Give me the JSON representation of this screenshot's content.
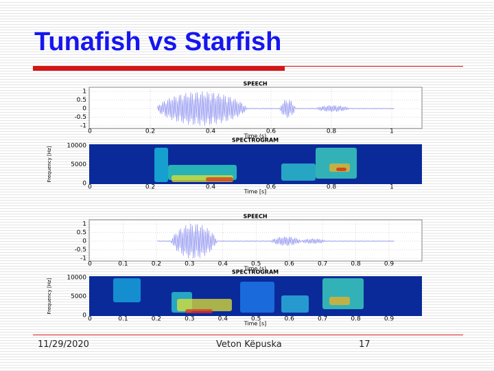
{
  "title": "Tunafish vs Starfish",
  "panels": [
    {
      "speech": {
        "title": "SPEECH",
        "xlabel": "Time (s)",
        "xticks": [
          "0",
          "0.2",
          "0.4",
          "0.6",
          "0.8",
          "1"
        ],
        "yticks": [
          "1",
          "0.5",
          "0",
          "-0.5",
          "-1"
        ]
      },
      "spectrogram": {
        "title": "SPECTROGRAM",
        "xlabel": "Time [s]",
        "ylabel": "Frequency [Hz]",
        "xticks": [
          "0",
          "0.2",
          "0.4",
          "0.6",
          "0.8",
          "1"
        ],
        "yticks": [
          "10000",
          "5000",
          "0"
        ]
      }
    },
    {
      "speech": {
        "title": "SPEECH",
        "xlabel": "Time (s)",
        "xticks": [
          "0",
          "0.1",
          "0.2",
          "0.3",
          "0.4",
          "0.5",
          "0.6",
          "0.7",
          "0.8",
          "0.9"
        ],
        "yticks": [
          "1",
          "0.5",
          "0",
          "-0.5",
          "-1"
        ]
      },
      "spectrogram": {
        "title": "SPECTROGRAM",
        "xlabel": "Time [s]",
        "ylabel": "Frequency [Hz]",
        "xticks": [
          "0",
          "0.1",
          "0.2",
          "0.3",
          "0.4",
          "0.5",
          "0.6",
          "0.7",
          "0.8",
          "0.9"
        ],
        "yticks": [
          "10000",
          "5000",
          "0"
        ]
      }
    }
  ],
  "footer": {
    "date": "11/29/2020",
    "author": "Veton Këpuska",
    "page": "17"
  }
}
